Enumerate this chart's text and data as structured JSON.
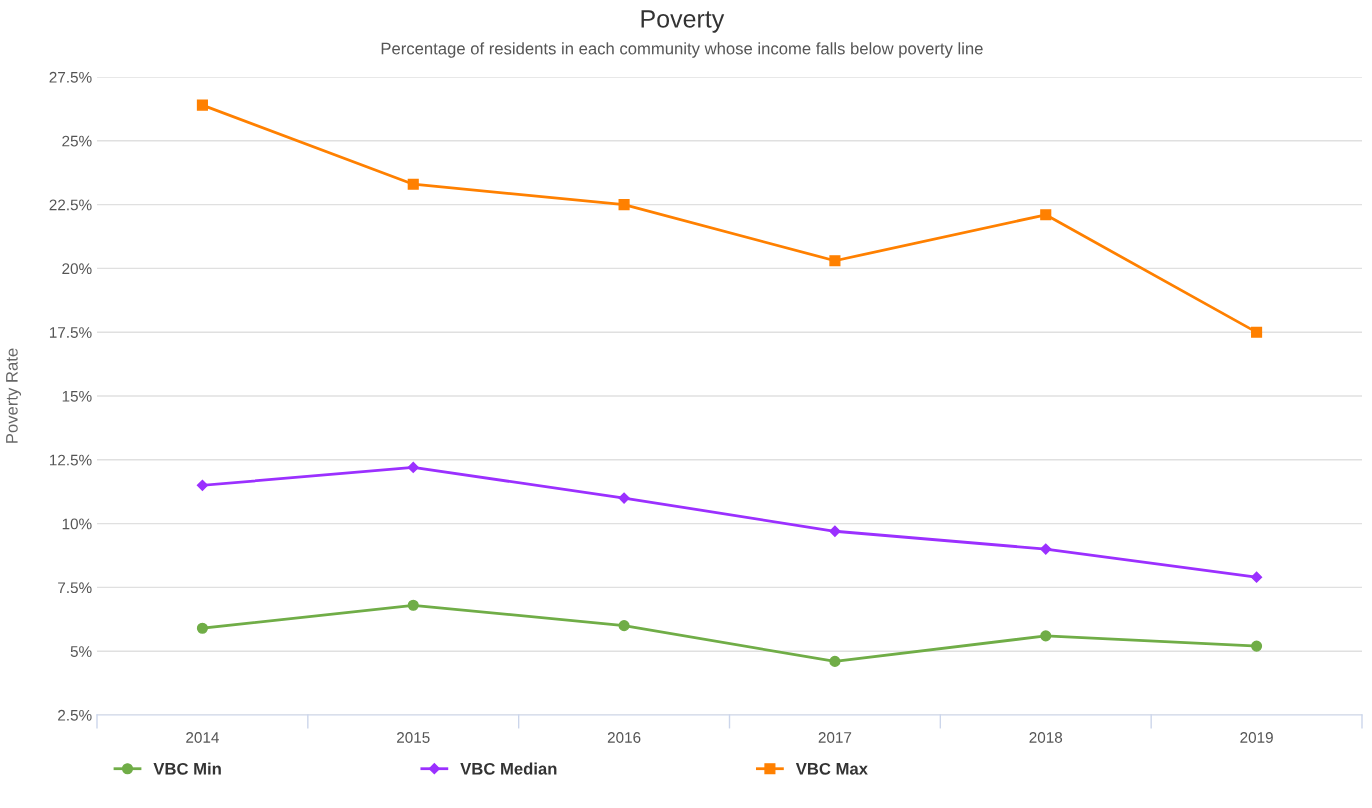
{
  "chart_data": {
    "type": "line",
    "title": "Poverty",
    "subtitle": "Percentage of residents in each community whose income falls below poverty line",
    "ylabel": "Poverty Rate",
    "categories": [
      "2014",
      "2015",
      "2016",
      "2017",
      "2018",
      "2019"
    ],
    "series": [
      {
        "name": "VBC Min",
        "color": "#70ad47",
        "marker": "circle",
        "values": [
          5.9,
          6.8,
          6.0,
          4.6,
          5.6,
          5.2
        ]
      },
      {
        "name": "VBC Median",
        "color": "#9b30ff",
        "marker": "diamond",
        "values": [
          11.5,
          12.2,
          11.0,
          9.7,
          9.0,
          7.9
        ]
      },
      {
        "name": "VBC Max",
        "color": "#ff8000",
        "marker": "square",
        "values": [
          26.4,
          23.3,
          22.5,
          20.3,
          22.1,
          17.5
        ]
      }
    ],
    "ylim": [
      2.5,
      27.5
    ],
    "yticks": [
      {
        "value": 2.5,
        "label": "2.5%"
      },
      {
        "value": 5,
        "label": "5%"
      },
      {
        "value": 7.5,
        "label": "7.5%"
      },
      {
        "value": 10,
        "label": "10%"
      },
      {
        "value": 12.5,
        "label": "12.5%"
      },
      {
        "value": 15,
        "label": "15%"
      },
      {
        "value": 17.5,
        "label": "17.5%"
      },
      {
        "value": 20,
        "label": "20%"
      },
      {
        "value": 22.5,
        "label": "22.5%"
      },
      {
        "value": 25,
        "label": "25%"
      },
      {
        "value": 27.5,
        "label": "27.5%"
      }
    ],
    "grid": "y",
    "legend": "bottom left",
    "line_style": "solid"
  }
}
